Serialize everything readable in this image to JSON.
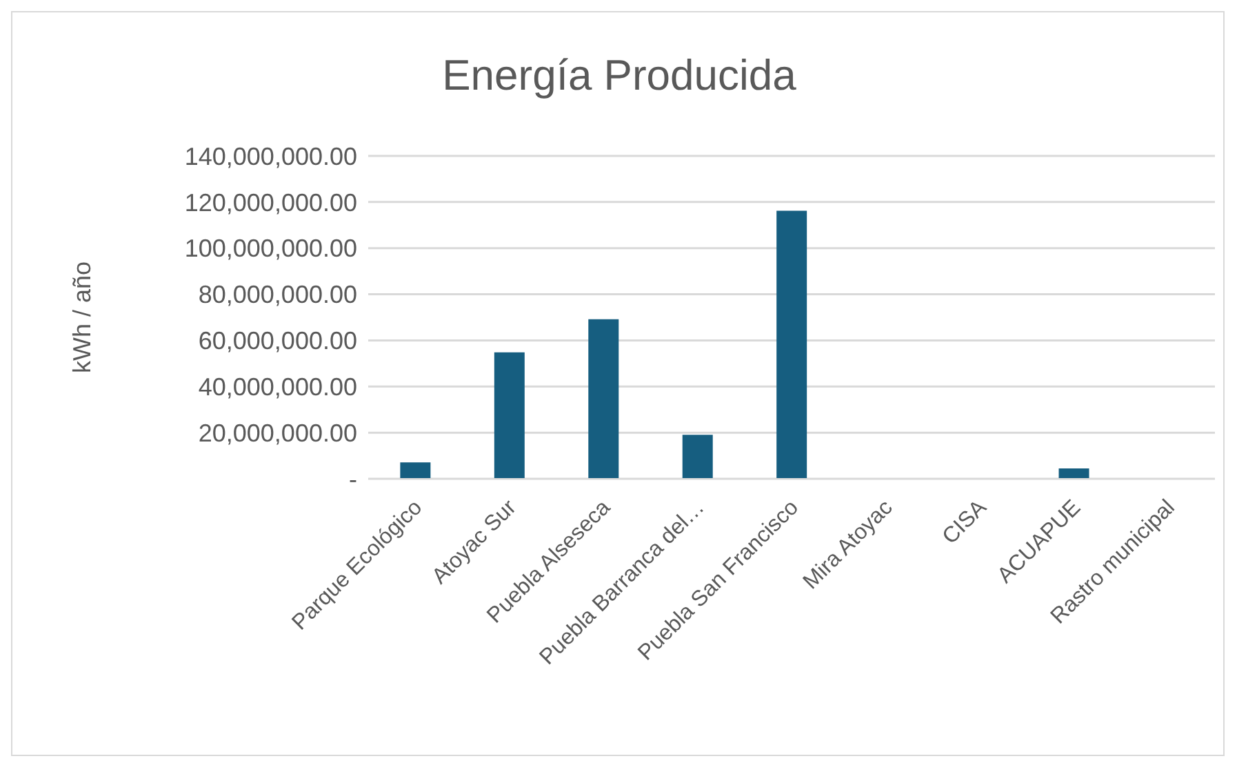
{
  "chart_data": {
    "type": "bar",
    "title": "Energía Producida",
    "ylabel": "kWh / año",
    "categories": [
      "Parque Ecológico",
      "Atoyac Sur",
      "Puebla Alseseca",
      "Puebla Barranca del…",
      "Puebla San Francisco",
      "Mira Atoyac",
      "CISA",
      "ACUAPUE",
      "Rastro municipal"
    ],
    "values": [
      7100000,
      54800000,
      69200000,
      19100000,
      116200000,
      0,
      0,
      4500000,
      0
    ],
    "color": "#165e80",
    "ylim": [
      0,
      140000000
    ],
    "yticks": [
      {
        "value": 0,
        "label": "-"
      },
      {
        "value": 20000000,
        "label": "20,000,000.00"
      },
      {
        "value": 40000000,
        "label": "40,000,000.00"
      },
      {
        "value": 60000000,
        "label": "60,000,000.00"
      },
      {
        "value": 80000000,
        "label": "80,000,000.00"
      },
      {
        "value": 100000000,
        "label": "100,000,000.00"
      },
      {
        "value": 120000000,
        "label": "120,000,000.00"
      },
      {
        "value": 140000000,
        "label": "140,000,000.00"
      }
    ],
    "grid": "y"
  }
}
